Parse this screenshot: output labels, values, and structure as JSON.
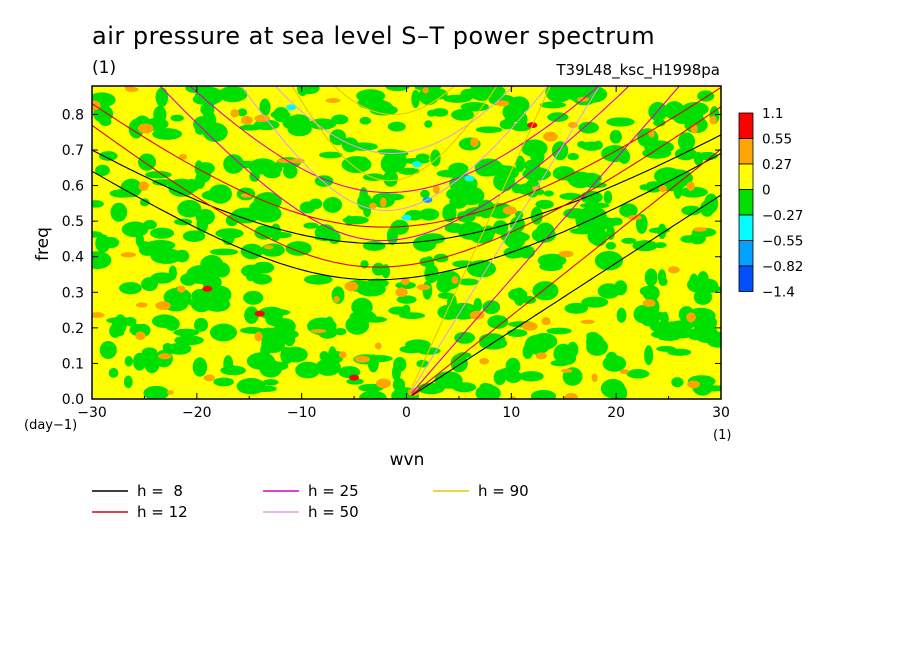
{
  "chart_data": {
    "type": "heatmap",
    "title": "air pressure at sea level S–T power spectrum",
    "subtitle": "(1)",
    "run_label": "T39L48_ksc_H1998pa",
    "xlabel": "wvn",
    "xunit": "(1)",
    "ylabel": "freq",
    "yunit": "(day−1)",
    "xlim": [
      -30,
      30
    ],
    "ylim": [
      0,
      0.88
    ],
    "xticks": [
      "−30",
      "−20",
      "−10",
      "0",
      "10",
      "20",
      "30"
    ],
    "xtick_values": [
      -30,
      -20,
      -10,
      0,
      10,
      20,
      30
    ],
    "yticks": [
      "0.0",
      "0.1",
      "0.2",
      "0.3",
      "0.4",
      "0.5",
      "0.6",
      "0.7",
      "0.8"
    ],
    "ytick_values": [
      0,
      0.1,
      0.2,
      0.3,
      0.4,
      0.5,
      0.6,
      0.7,
      0.8
    ],
    "colorbar": {
      "labels": [
        "1.1",
        "0.55",
        "0.27",
        "0",
        "−0.27",
        "−0.55",
        "−0.82",
        "−1.4"
      ],
      "levels": [
        1.1,
        0.55,
        0.27,
        0,
        -0.27,
        -0.55,
        -0.82,
        -1.4
      ],
      "colors": [
        "#ff0000",
        "#ffa500",
        "#ffff00",
        "#00e000",
        "#00ffff",
        "#00a0ff",
        "#0050ff"
      ]
    },
    "dispersion_curves": [
      {
        "name": "h =  8",
        "h": 8,
        "color": "#000000"
      },
      {
        "name": "h = 12",
        "h": 12,
        "color": "#e00000"
      },
      {
        "name": "h = 25",
        "h": 25,
        "color": "#e000c0"
      },
      {
        "name": "h = 50",
        "h": 50,
        "color": "#e0a0e0"
      },
      {
        "name": "h = 90",
        "h": 90,
        "color": "#e8c800"
      }
    ],
    "notes_field": "noisy field dominated by values between -0.27 and 0.27 with scattered small patches"
  }
}
